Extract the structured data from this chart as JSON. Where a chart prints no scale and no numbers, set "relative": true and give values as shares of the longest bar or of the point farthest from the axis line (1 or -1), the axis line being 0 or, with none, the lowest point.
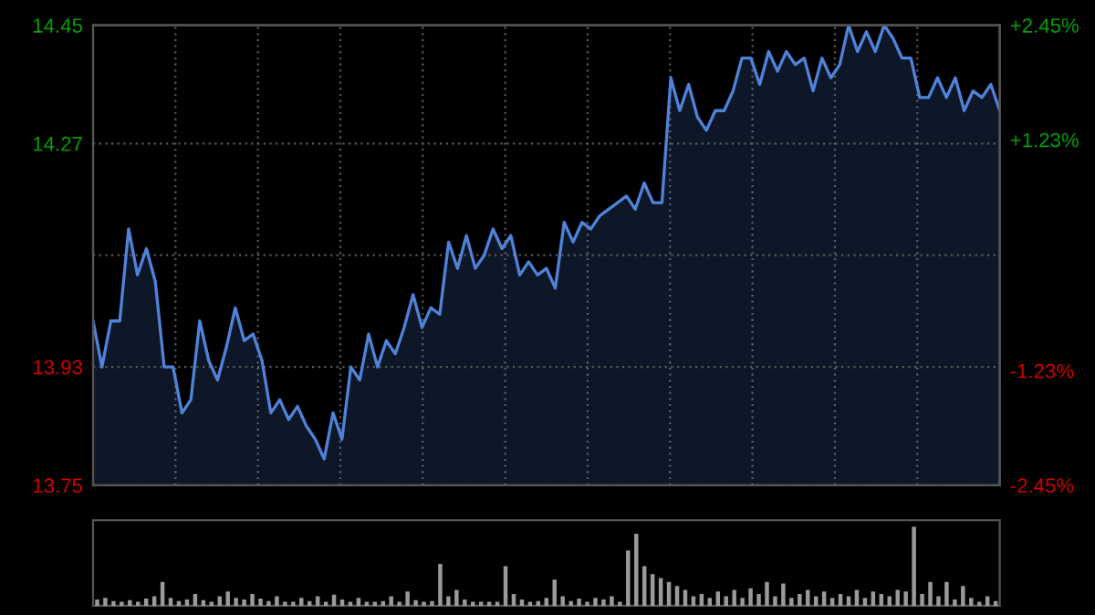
{
  "chart_data": [
    {
      "type": "area",
      "color": "#4f82d8",
      "categories": [
        null,
        null,
        null,
        null,
        null,
        null,
        null,
        null,
        null,
        null,
        null,
        null,
        null,
        null,
        null,
        null,
        null,
        null,
        null,
        null,
        null,
        null,
        null,
        null,
        null,
        null,
        null,
        null,
        null,
        null,
        null,
        null,
        null,
        null,
        null,
        null,
        null,
        null,
        null,
        null,
        null,
        null,
        null,
        null,
        null,
        null,
        null,
        null,
        null,
        null,
        null,
        null,
        null,
        null,
        null,
        null,
        null,
        null,
        null,
        null,
        null,
        null,
        null,
        null,
        null,
        null,
        null,
        null,
        null,
        null,
        null,
        null,
        null,
        null,
        null,
        null,
        null,
        null,
        null,
        null,
        null,
        null,
        null,
        null,
        null,
        null,
        null,
        null,
        null,
        null,
        null,
        null,
        null,
        null,
        null,
        null,
        null,
        null,
        null,
        null,
        null,
        null,
        null
      ],
      "values": [
        14.0,
        13.93,
        14.0,
        14.0,
        14.14,
        14.07,
        14.11,
        14.06,
        13.93,
        13.93,
        13.86,
        13.88,
        14.0,
        13.94,
        13.91,
        13.96,
        14.02,
        13.97,
        13.98,
        13.94,
        13.86,
        13.88,
        13.85,
        13.87,
        13.84,
        13.82,
        13.79,
        13.86,
        13.82,
        13.93,
        13.91,
        13.98,
        13.93,
        13.97,
        13.95,
        13.99,
        14.04,
        13.99,
        14.02,
        14.01,
        14.12,
        14.08,
        14.13,
        14.08,
        14.1,
        14.14,
        14.11,
        14.13,
        14.07,
        14.09,
        14.07,
        14.08,
        14.05,
        14.15,
        14.12,
        14.15,
        14.14,
        14.16,
        14.17,
        14.18,
        14.19,
        14.17,
        14.21,
        14.18,
        14.18,
        14.37,
        14.32,
        14.36,
        14.31,
        14.29,
        14.32,
        14.32,
        14.35,
        14.4,
        14.4,
        14.36,
        14.41,
        14.38,
        14.41,
        14.39,
        14.4,
        14.35,
        14.4,
        14.37,
        14.39,
        14.45,
        14.41,
        14.44,
        14.41,
        14.45,
        14.43,
        14.4,
        14.4,
        14.34,
        14.34,
        14.37,
        14.34,
        14.37,
        14.32,
        14.35,
        14.34,
        14.36,
        14.32
      ],
      "ylim": [
        13.75,
        14.45
      ],
      "yticks": [
        13.75,
        13.93,
        {
          "value": 14.1,
          "label": null
        },
        14.27,
        14.45
      ],
      "y2lim": [
        -2.45,
        2.45
      ],
      "y2ticks": [
        {
          "value": -2.45,
          "label": "-2.45%"
        },
        {
          "value": -1.23,
          "label": "-1.23%"
        },
        {
          "value": 1.23,
          "label": "+1.23%"
        },
        {
          "value": 2.45,
          "label": "+2.45%"
        }
      ],
      "grid": true
    },
    {
      "type": "bar",
      "relative": true,
      "color": "#9a9a9a",
      "categories": [
        null,
        null,
        null,
        null,
        null,
        null,
        null,
        null,
        null,
        null,
        null,
        null,
        null,
        null,
        null,
        null,
        null,
        null,
        null,
        null,
        null,
        null,
        null,
        null,
        null,
        null,
        null,
        null,
        null,
        null,
        null,
        null,
        null,
        null,
        null,
        null,
        null,
        null,
        null,
        null,
        null,
        null,
        null,
        null,
        null,
        null,
        null,
        null,
        null,
        null,
        null,
        null,
        null,
        null,
        null,
        null,
        null,
        null,
        null,
        null,
        null,
        null,
        null,
        null,
        null,
        null,
        null,
        null,
        null,
        null,
        null,
        null,
        null,
        null,
        null,
        null,
        null,
        null,
        null,
        null,
        null,
        null,
        null,
        null,
        null,
        null,
        null,
        null,
        null,
        null,
        null,
        null,
        null,
        null,
        null,
        null,
        null,
        null,
        null,
        null,
        null,
        null,
        null,
        null,
        null,
        null,
        null,
        null,
        null,
        null,
        null
      ],
      "values": [
        0.08,
        0.1,
        0.06,
        0.05,
        0.07,
        0.05,
        0.09,
        0.12,
        0.3,
        0.1,
        0.06,
        0.08,
        0.15,
        0.07,
        0.05,
        0.12,
        0.18,
        0.1,
        0.08,
        0.15,
        0.09,
        0.06,
        0.12,
        0.05,
        0.05,
        0.1,
        0.06,
        0.12,
        0.05,
        0.14,
        0.08,
        0.05,
        0.1,
        0.05,
        0.05,
        0.06,
        0.12,
        0.05,
        0.18,
        0.07,
        0.05,
        0.06,
        0.53,
        0.12,
        0.2,
        0.08,
        0.05,
        0.05,
        0.05,
        0.05,
        0.5,
        0.15,
        0.08,
        0.05,
        0.06,
        0.1,
        0.33,
        0.12,
        0.06,
        0.09,
        0.05,
        0.1,
        0.08,
        0.12,
        0.05,
        0.7,
        0.91,
        0.5,
        0.4,
        0.35,
        0.3,
        0.25,
        0.2,
        0.12,
        0.15,
        0.1,
        0.18,
        0.12,
        0.2,
        0.1,
        0.22,
        0.15,
        0.3,
        0.12,
        0.28,
        0.1,
        0.15,
        0.2,
        0.12,
        0.18,
        0.1,
        0.15,
        0.12,
        0.2,
        0.1,
        0.18,
        0.15,
        0.12,
        0.2,
        0.18,
        1.0,
        0.15,
        0.3,
        0.12,
        0.3,
        0.08,
        0.25,
        0.1,
        0.05,
        0.12,
        0.06
      ]
    }
  ]
}
